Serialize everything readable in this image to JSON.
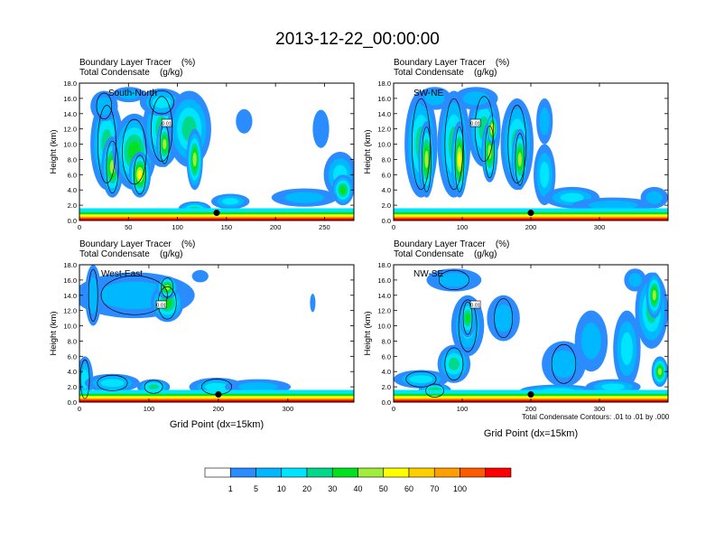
{
  "figure": {
    "title": "2013-12-22_00:00:00",
    "contour_note": "Total Condensate Contours: .01 to .01 by .000",
    "contour_label": "0.01"
  },
  "colors": {
    "levels": [
      "#ffffff",
      "#2a8cff",
      "#00b8ff",
      "#00e5ff",
      "#00d98a",
      "#00e21f",
      "#a0ee3a",
      "#ffff00",
      "#ffd000",
      "#ff9f00",
      "#ff5a00",
      "#ff0000"
    ]
  },
  "colorbar": {
    "labels": [
      "1",
      "5",
      "10",
      "20",
      "30",
      "40",
      "50",
      "60",
      "70",
      "100"
    ]
  },
  "panels": [
    {
      "id": "south-north",
      "title1": "Boundary Layer Tracer    (%)",
      "title2": "Total Condensate    (g/kg)",
      "label": "South-North",
      "ylabel": "Height (km)",
      "xlabel": "",
      "xticks": [
        "0",
        "50",
        "100",
        "150",
        "200",
        "250"
      ],
      "xtick_values": [
        0,
        50,
        100,
        150,
        200,
        250
      ],
      "xmax": 280,
      "yticks": [
        "0.0",
        "2.0",
        "4.0",
        "6.0",
        "8.0",
        "10.0",
        "12.0",
        "14.0",
        "16.0",
        "18.0"
      ],
      "marker_x": 140,
      "marker_y": 1.0
    },
    {
      "id": "sw-ne",
      "title1": "Boundary Layer Tracer    (%)",
      "title2": "Total Condensate    (g/kg)",
      "label": "SW-NE",
      "ylabel": "Height (km)",
      "xlabel": "",
      "xticks": [
        "0",
        "100",
        "200",
        "300"
      ],
      "xtick_values": [
        0,
        100,
        200,
        300
      ],
      "xmax": 400,
      "yticks": [
        "0.0",
        "2.0",
        "4.0",
        "6.0",
        "8.0",
        "10.0",
        "12.0",
        "14.0",
        "16.0",
        "18.0"
      ],
      "marker_x": 200,
      "marker_y": 1.0
    },
    {
      "id": "west-east",
      "title1": "Boundary Layer Tracer    (%)",
      "title2": "Total Condensate    (g/kg)",
      "label": "West-East",
      "ylabel": "Height (km)",
      "xlabel": "Grid Point (dx=15km)",
      "xticks": [
        "0",
        "100",
        "200",
        "300"
      ],
      "xtick_values": [
        0,
        100,
        200,
        300
      ],
      "xmax": 395,
      "yticks": [
        "0.0",
        "2.0",
        "4.0",
        "6.0",
        "8.0",
        "10.0",
        "12.0",
        "14.0",
        "16.0",
        "18.0"
      ],
      "marker_x": 200,
      "marker_y": 1.0
    },
    {
      "id": "nw-se",
      "title1": "Boundary Layer Tracer    (%)",
      "title2": "Total Condensate    (g/kg)",
      "label": "NW-SE",
      "ylabel": "Height (km)",
      "xlabel": "Grid Point (dx=15km)",
      "xticks": [
        "0",
        "100",
        "200",
        "300"
      ],
      "xtick_values": [
        0,
        100,
        200,
        300
      ],
      "xmax": 400,
      "yticks": [
        "0.0",
        "2.0",
        "4.0",
        "6.0",
        "8.0",
        "10.0",
        "12.0",
        "14.0",
        "16.0",
        "18.0"
      ],
      "marker_x": 200,
      "marker_y": 1.0
    }
  ],
  "chart_data": {
    "type": "heatmap",
    "title": "2013-12-22_00:00:00",
    "field": "Boundary Layer Tracer (%)",
    "contour_field": "Total Condensate (g/kg)",
    "ylim": [
      0,
      18
    ],
    "color_levels": [
      1,
      5,
      10,
      20,
      30,
      40,
      50,
      60,
      70,
      100
    ],
    "cross_sections": [
      "South-North",
      "SW-NE",
      "West-East",
      "NW-SE"
    ]
  }
}
